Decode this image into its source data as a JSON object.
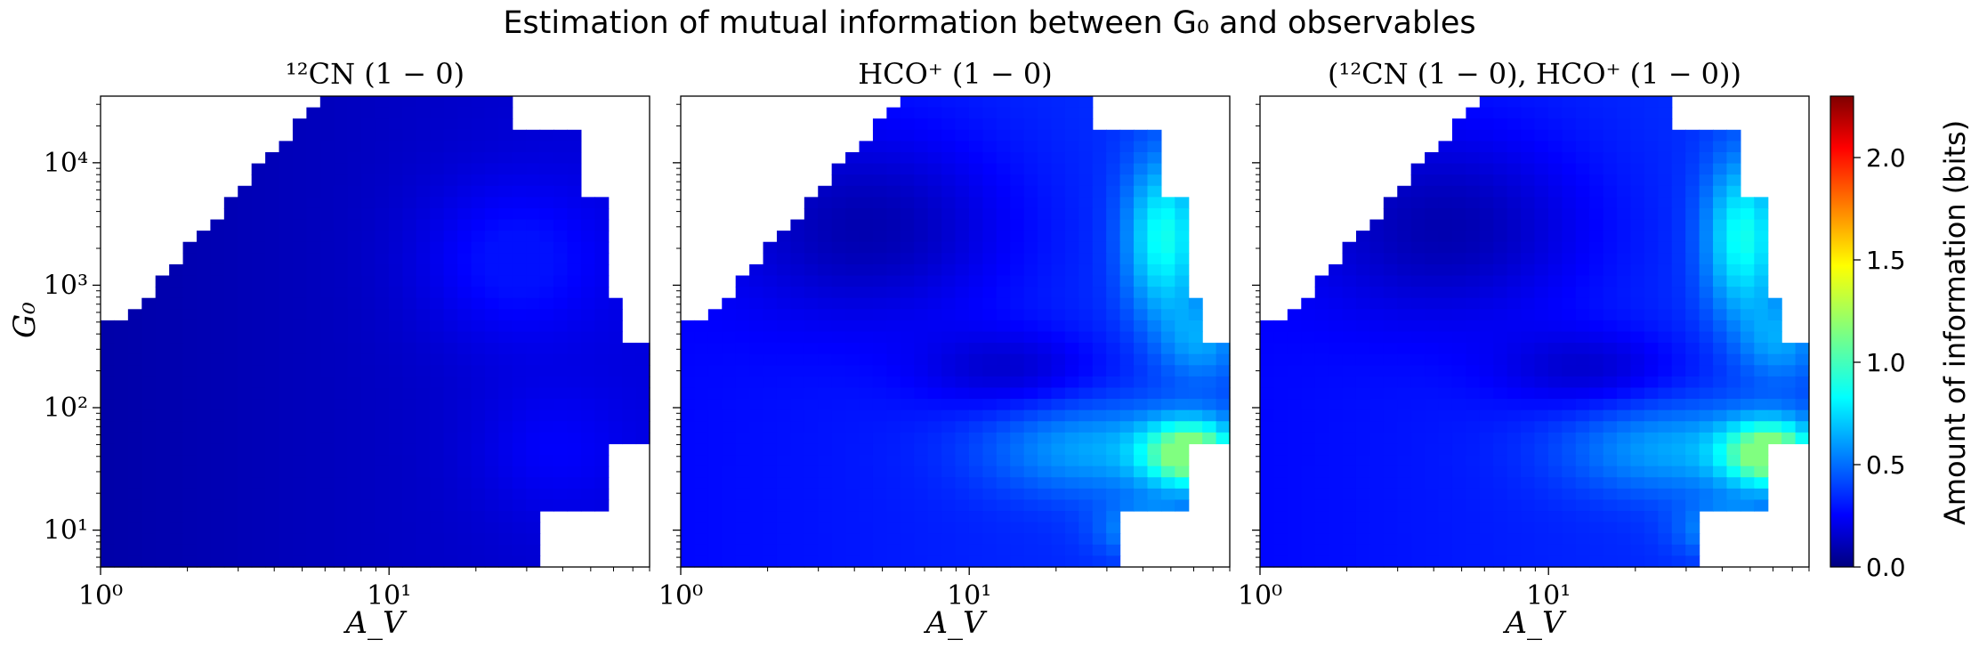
{
  "figure": {
    "suptitle": "Estimation of mutual information between G₀ and observables",
    "ylabel": "G₀",
    "colorbar": {
      "label": "Amount of information (bits)",
      "ticks": [
        "0.0",
        "0.5",
        "1.0",
        "1.5",
        "2.0"
      ],
      "range": [
        0,
        2.3
      ],
      "colormap": "jet"
    }
  },
  "chart_data": [
    {
      "type": "heatmap",
      "title": "¹²CN (1 − 0)",
      "xlabel": "A_V",
      "ylabel": "G₀",
      "xscale": "log",
      "yscale": "log",
      "xlim": [
        1,
        80
      ],
      "ylim": [
        5,
        35000
      ],
      "xticks": [
        {
          "value": 1,
          "label": "10⁰"
        },
        {
          "value": 10,
          "label": "10¹"
        }
      ],
      "yticks": [
        {
          "value": 10,
          "label": "10¹"
        },
        {
          "value": 100,
          "label": "10²"
        },
        {
          "value": 1000,
          "label": "10³"
        },
        {
          "value": 10000,
          "label": "10⁴"
        }
      ],
      "peak_information_bits": 0.3,
      "features": [
        {
          "av": 20,
          "g0": 1200,
          "value": 0.28
        },
        {
          "av": 30,
          "g0": 60,
          "value": 0.2
        }
      ]
    },
    {
      "type": "heatmap",
      "title": "HCO⁺ (1 − 0)",
      "xlabel": "A_V",
      "xscale": "log",
      "yscale": "log",
      "xlim": [
        1,
        80
      ],
      "ylim": [
        5,
        35000
      ],
      "xticks": [
        {
          "value": 1,
          "label": "10⁰"
        },
        {
          "value": 10,
          "label": "10¹"
        }
      ],
      "peak_information_bits": 1.1,
      "features": [
        {
          "av": 60,
          "g0": 38,
          "value": 1.1
        },
        {
          "av": 50,
          "g0": 2500,
          "value": 0.8
        },
        {
          "av": 8,
          "g0": 3000,
          "value": 0.05
        },
        {
          "av": 15,
          "g0": 150,
          "value": 0.1
        }
      ]
    },
    {
      "type": "heatmap",
      "title": "(¹²CN (1 − 0), HCO⁺ (1 − 0))",
      "xlabel": "A_V",
      "xscale": "log",
      "yscale": "log",
      "xlim": [
        1,
        80
      ],
      "ylim": [
        5,
        35000
      ],
      "xticks": [
        {
          "value": 1,
          "label": "10⁰"
        },
        {
          "value": 10,
          "label": "10¹"
        }
      ],
      "peak_information_bits": 1.1,
      "features": [
        {
          "av": 60,
          "g0": 38,
          "value": 1.05
        },
        {
          "av": 50,
          "g0": 2500,
          "value": 0.85
        },
        {
          "av": 8,
          "g0": 3000,
          "value": 0.05
        },
        {
          "av": 15,
          "g0": 150,
          "value": 0.1
        }
      ]
    }
  ]
}
